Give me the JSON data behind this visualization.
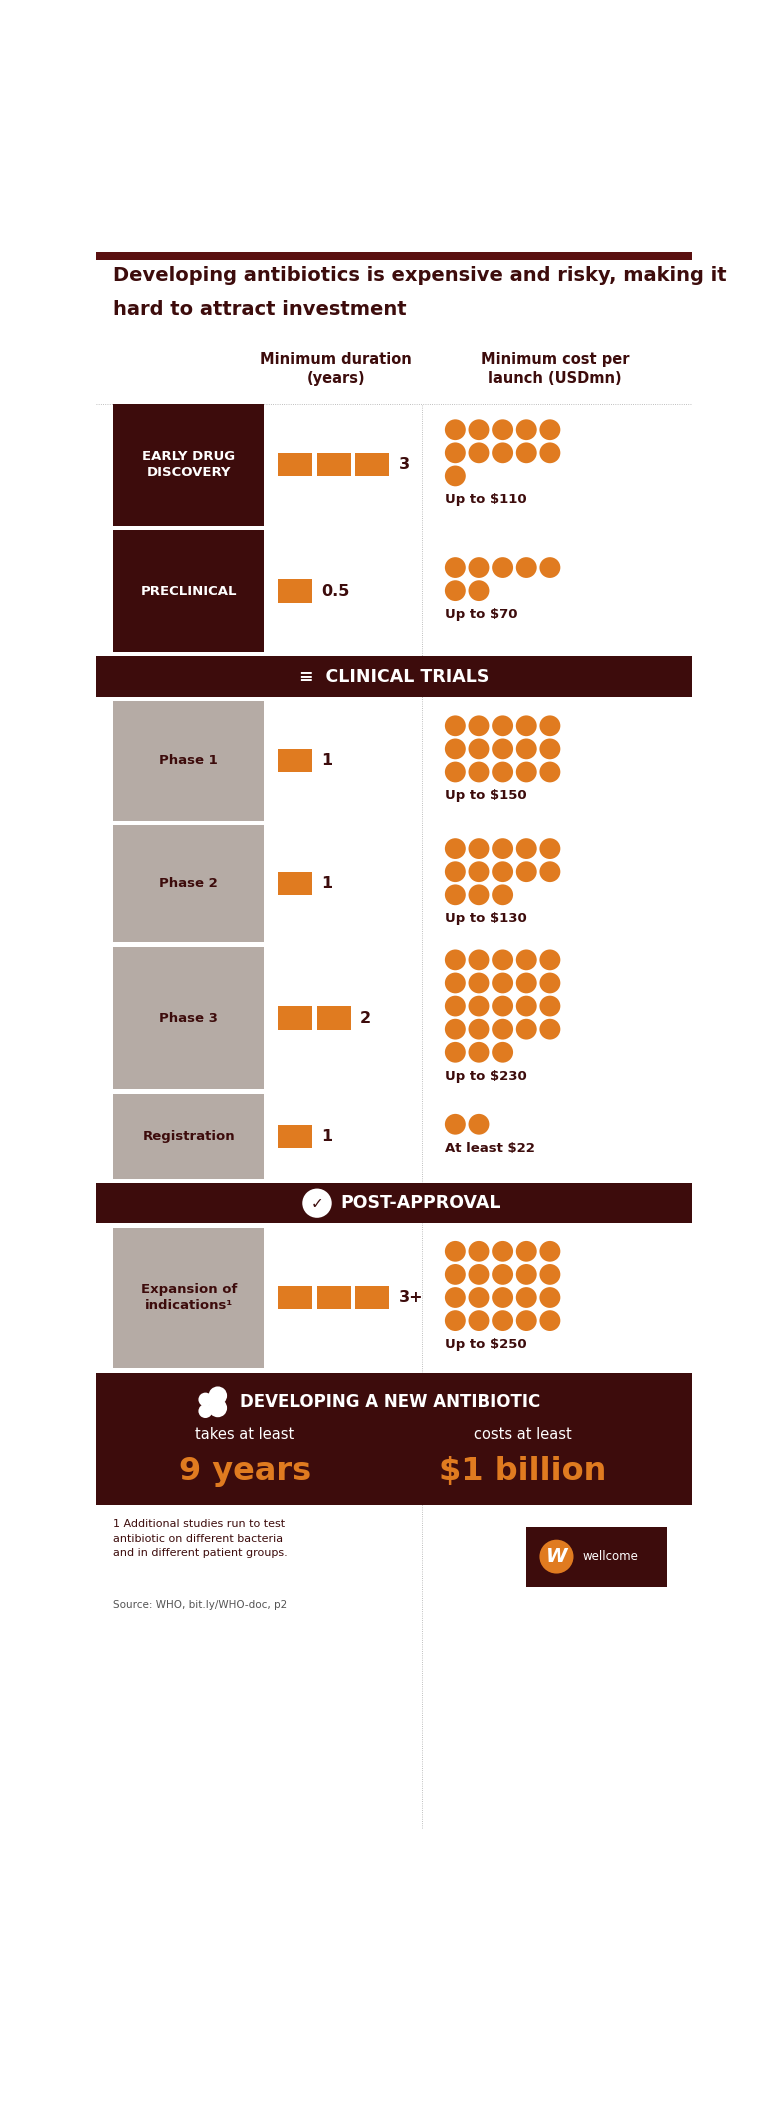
{
  "title_line1": "Developing antibiotics is expensive and risky, making it",
  "title_line2": "hard to attract investment",
  "col1_header": "Minimum duration\n(years)",
  "col2_header": "Minimum cost per\nlaunch (USDmn)",
  "dark_brown": "#3d0c0c",
  "orange": "#e07b20",
  "gray_label": "#b5aba5",
  "white": "#ffffff",
  "bg": "#ffffff",
  "text_brown": "#3d0c0c",
  "top_bar_color": "#5a1010",
  "pre_rows": [
    {
      "label": "EARLY DRUG\nDISCOVERY",
      "dark_bg": true,
      "duration_num": "3",
      "bar_count": 3,
      "cost_label": "Up to $110",
      "dots_grid": [
        5,
        5,
        1
      ]
    },
    {
      "label": "PRECLINICAL",
      "dark_bg": true,
      "duration_num": "0.5",
      "bar_count": 0.5,
      "cost_label": "Up to $70",
      "dots_grid": [
        5,
        2
      ]
    }
  ],
  "section_clinical": "CLINICAL TRIALS",
  "clinical_rows": [
    {
      "label": "Phase 1",
      "dark_bg": false,
      "duration_num": "1",
      "bar_count": 1,
      "cost_label": "Up to $150",
      "dots_grid": [
        5,
        5,
        5
      ]
    },
    {
      "label": "Phase 2",
      "dark_bg": false,
      "duration_num": "1",
      "bar_count": 1,
      "cost_label": "Up to $130",
      "dots_grid": [
        5,
        5,
        3
      ]
    },
    {
      "label": "Phase 3",
      "dark_bg": false,
      "duration_num": "2",
      "bar_count": 2,
      "cost_label": "Up to $230",
      "dots_grid": [
        5,
        5,
        5,
        5,
        3
      ]
    },
    {
      "label": "Registration",
      "dark_bg": false,
      "duration_num": "1",
      "bar_count": 1,
      "cost_label": "At least $22",
      "dots_grid": [
        2
      ]
    }
  ],
  "section_postapproval": "POST-APPROVAL",
  "postapproval_rows": [
    {
      "label": "Expansion of\nindications¹",
      "dark_bg": false,
      "duration_num": "3+",
      "bar_count": 3,
      "cost_label": "Up to $250",
      "dots_grid": [
        5,
        5,
        5,
        5
      ]
    }
  ],
  "bottom_title": "DEVELOPING A NEW ANTIBIOTIC",
  "bottom_takes_label": "takes at least",
  "bottom_takes_value": "9 years",
  "bottom_costs_label": "costs at least",
  "bottom_costs_value": "$1 billion",
  "footnote": "1 Additional studies run to test\nantibiotic on different bacteria\nand in different patient groups.",
  "source": "Source: WHO, bit.ly/WHO-doc, p2",
  "wellcome_text": "wellcome"
}
